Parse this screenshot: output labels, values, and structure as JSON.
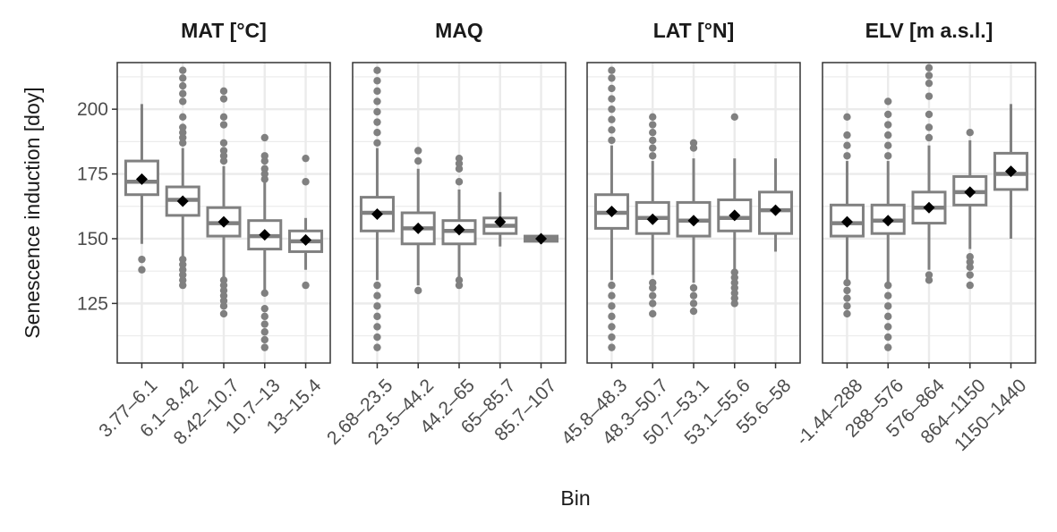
{
  "chart_data": {
    "type": "boxplot",
    "ylabel": "Senescence induction [doy]",
    "xlabel": "Bin",
    "ylim": [
      102,
      218
    ],
    "yticks": [
      125,
      150,
      175,
      200
    ],
    "grid": true,
    "colors": {
      "box": "#808080",
      "mean": "#000000",
      "grid": "#ebebeb",
      "border": "#333333"
    },
    "panels": [
      {
        "title": "MAT [°C]",
        "categories": [
          "3.77–6.1",
          "6.1–8.42",
          "8.42–10.7",
          "10.7–13",
          "13–15.4"
        ],
        "boxes": [
          {
            "q1": 167,
            "median": 172,
            "q3": 180,
            "whisker_low": 148,
            "whisker_high": 202,
            "mean": 173,
            "outliers": [
              138,
              142
            ]
          },
          {
            "q1": 159,
            "median": 165,
            "q3": 170,
            "whisker_low": 141,
            "whisker_high": 185,
            "mean": 164.5,
            "outliers": [
              132,
              134,
              136,
              138,
              140,
              142,
              187,
              189,
              191,
              193,
              197,
              203,
              206,
              209,
              212,
              215
            ]
          },
          {
            "q1": 151,
            "median": 156,
            "q3": 162,
            "whisker_low": 135,
            "whisker_high": 178,
            "mean": 156.5,
            "outliers": [
              121,
              124,
              126,
              128,
              130,
              132,
              134,
              180,
              182,
              184,
              187,
              194,
              197,
              204,
              207
            ]
          },
          {
            "q1": 146,
            "median": 151,
            "q3": 157,
            "whisker_low": 130,
            "whisker_high": 172,
            "mean": 151.5,
            "outliers": [
              108,
              111,
              114,
              117,
              120,
              123,
              129,
              173,
              175,
              177,
              180,
              182,
              189
            ]
          },
          {
            "q1": 145,
            "median": 149,
            "q3": 153,
            "whisker_low": 138,
            "whisker_high": 158,
            "mean": 149.5,
            "outliers": [
              132,
              172,
              181
            ]
          }
        ]
      },
      {
        "title": "MAQ",
        "categories": [
          "2.68–23.5",
          "23.5–44.2",
          "44.2–65",
          "65–85.7",
          "85.7–107"
        ],
        "boxes": [
          {
            "q1": 153,
            "median": 160,
            "q3": 166,
            "whisker_low": 134,
            "whisker_high": 185,
            "mean": 159.5,
            "outliers": [
              108,
              112,
              116,
              120,
              124,
              128,
              132,
              187,
              191,
              195,
              199,
              203,
              207,
              211,
              215
            ]
          },
          {
            "q1": 148,
            "median": 154,
            "q3": 160,
            "whisker_low": 132,
            "whisker_high": 177,
            "mean": 154,
            "outliers": [
              130,
              180,
              184
            ]
          },
          {
            "q1": 148,
            "median": 153,
            "q3": 157,
            "whisker_low": 135,
            "whisker_high": 169,
            "mean": 153.5,
            "outliers": [
              132,
              134,
              172,
              177,
              179,
              181
            ]
          },
          {
            "q1": 152,
            "median": 155,
            "q3": 158,
            "whisker_low": 147,
            "whisker_high": 168,
            "mean": 156.5,
            "outliers": []
          },
          {
            "q1": 149,
            "median": 150,
            "q3": 151,
            "whisker_low": 148,
            "whisker_high": 151,
            "mean": 150,
            "outliers": []
          }
        ]
      },
      {
        "title": "LAT [°N]",
        "categories": [
          "45.8–48.3",
          "48.3–50.7",
          "50.7–53.1",
          "53.1–55.6",
          "55.6–58"
        ],
        "boxes": [
          {
            "q1": 154,
            "median": 160,
            "q3": 167,
            "whisker_low": 134,
            "whisker_high": 186,
            "mean": 160.5,
            "outliers": [
              108,
              112,
              116,
              120,
              124,
              128,
              132,
              188,
              192,
              196,
              200,
              204,
              208,
              212,
              215
            ]
          },
          {
            "q1": 152,
            "median": 158,
            "q3": 164,
            "whisker_low": 136,
            "whisker_high": 180,
            "mean": 157.5,
            "outliers": [
              121,
              125,
              128,
              131,
              133,
              182,
              185,
              188,
              191,
              194,
              197
            ]
          },
          {
            "q1": 151,
            "median": 157,
            "q3": 164,
            "whisker_low": 133,
            "whisker_high": 181,
            "mean": 157,
            "outliers": [
              122,
              125,
              128,
              131,
              185,
              187
            ]
          },
          {
            "q1": 153,
            "median": 158,
            "q3": 165,
            "whisker_low": 138,
            "whisker_high": 181,
            "mean": 159,
            "outliers": [
              125,
              127,
              129,
              131,
              133,
              135,
              137,
              197
            ]
          },
          {
            "q1": 152,
            "median": 161,
            "q3": 168,
            "whisker_low": 145,
            "whisker_high": 181,
            "mean": 161,
            "outliers": []
          }
        ]
      },
      {
        "title": "ELV [m a.s.l.]",
        "categories": [
          "-1.44–288",
          "288–576",
          "576–864",
          "864–1150",
          "1150–1440"
        ],
        "boxes": [
          {
            "q1": 151,
            "median": 156,
            "q3": 163,
            "whisker_low": 133,
            "whisker_high": 180,
            "mean": 156.5,
            "outliers": [
              121,
              124,
              127,
              130,
              133,
              182,
              186,
              190,
              197
            ]
          },
          {
            "q1": 152,
            "median": 157,
            "q3": 163,
            "whisker_low": 133,
            "whisker_high": 180,
            "mean": 157,
            "outliers": [
              108,
              112,
              116,
              120,
              124,
              128,
              132,
              182,
              186,
              190,
              194,
              198,
              203
            ]
          },
          {
            "q1": 156,
            "median": 162,
            "q3": 168,
            "whisker_low": 138,
            "whisker_high": 186,
            "mean": 162,
            "outliers": [
              134,
              136,
              189,
              193,
              198,
              205,
              210,
              213,
              216
            ]
          },
          {
            "q1": 163,
            "median": 168,
            "q3": 174,
            "whisker_low": 146,
            "whisker_high": 188,
            "mean": 168,
            "outliers": [
              132,
              136,
              139,
              141,
              143,
              191
            ]
          },
          {
            "q1": 169,
            "median": 175,
            "q3": 183,
            "whisker_low": 150,
            "whisker_high": 202,
            "mean": 176,
            "outliers": []
          }
        ]
      }
    ]
  }
}
